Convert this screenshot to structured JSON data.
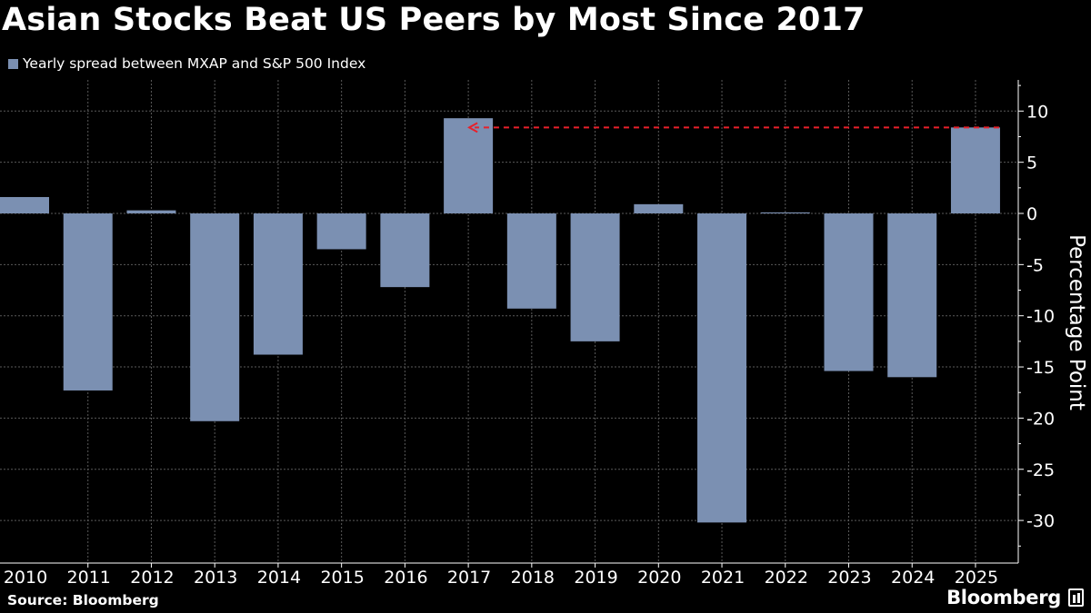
{
  "title": "Asian Stocks Beat US Peers by Most Since 2017",
  "legend": {
    "label": "Yearly spread between MXAP and S&P 500 Index",
    "color": "#7b90b2"
  },
  "source": "Source: Bloomberg",
  "brand": "Bloomberg",
  "colors": {
    "bar": "#7b90b2",
    "reference_line": "#e8202a",
    "grid": "#5a5a5a",
    "background": "#000000",
    "text": "#ffffff"
  },
  "chart_data": {
    "type": "bar",
    "categories": [
      "2010",
      "2011",
      "2012",
      "2013",
      "2014",
      "2015",
      "2016",
      "2017",
      "2018",
      "2019",
      "2020",
      "2021",
      "2022",
      "2023",
      "2024",
      "2025"
    ],
    "series": [
      {
        "name": "Yearly spread between MXAP and S&P 500 Index",
        "values": [
          1.6,
          -17.3,
          0.3,
          -20.3,
          -13.8,
          -3.5,
          -7.2,
          9.3,
          -9.3,
          -12.5,
          0.9,
          -30.2,
          0.1,
          -15.4,
          -16.0,
          8.4
        ]
      }
    ],
    "ylabel": "Percentage Point",
    "ylim": [
      -34,
      13
    ],
    "yticks": [
      10,
      5,
      0,
      -5,
      -10,
      -15,
      -20,
      -25,
      -30
    ],
    "ytick_labels": [
      "10",
      "5",
      "0",
      "-5",
      "-10",
      "-15",
      "-20",
      "-25",
      "-30"
    ],
    "y_axis_side": "right",
    "grid": true,
    "legend_position": "top-left",
    "annotations": [
      {
        "type": "dashed-arrow",
        "from_category": "2025",
        "to_category": "2017",
        "y": 8.4
      }
    ]
  }
}
